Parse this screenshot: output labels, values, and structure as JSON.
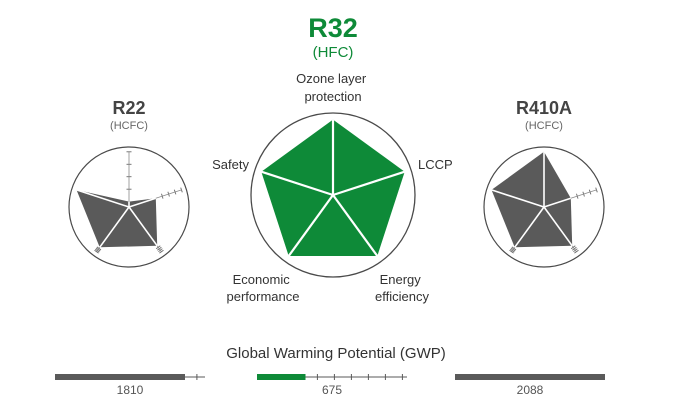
{
  "colors": {
    "green": "#0e8a38",
    "gray": "#5a5a5a",
    "outline": "#4a4a4a",
    "text": "#333333",
    "subtext": "#666666"
  },
  "chart_data": [
    {
      "type": "radar",
      "name": "R32",
      "subtitle": "(HFC)",
      "axes": [
        "Ozone layer protection",
        "LCCP",
        "Energy efficiency",
        "Economic performance",
        "Safety"
      ],
      "axis_label_lines": [
        [
          "Ozone layer",
          "protection"
        ],
        [
          "LCCP"
        ],
        [
          "Energy",
          "efficiency"
        ],
        [
          "Economic",
          "performance"
        ],
        [
          "Safety"
        ]
      ],
      "values": [
        0.92,
        0.92,
        0.92,
        0.92,
        0.92
      ],
      "range": [
        0,
        1
      ],
      "color": "#0e8a38"
    },
    {
      "type": "radar",
      "name": "R22",
      "subtitle": "(HCFC)",
      "axes": [
        "Ozone layer protection",
        "LCCP",
        "Energy efficiency",
        "Economic performance",
        "Safety"
      ],
      "values": [
        0.09,
        0.47,
        0.8,
        0.83,
        0.92
      ],
      "range": [
        0,
        1
      ],
      "color": "#5a5a5a"
    },
    {
      "type": "radar",
      "name": "R410A",
      "subtitle": "(HCFC)",
      "axes": [
        "Ozone layer protection",
        "LCCP",
        "Energy efficiency",
        "Economic performance",
        "Safety"
      ],
      "values": [
        0.92,
        0.47,
        0.8,
        0.83,
        0.92
      ],
      "range": [
        0,
        1
      ],
      "color": "#5a5a5a"
    },
    {
      "type": "bar",
      "title": "Global Warming Potential (GWP)",
      "categories": [
        "R22",
        "R32",
        "R410A"
      ],
      "values": [
        1810,
        675,
        2088
      ],
      "labels": [
        "1810",
        "675",
        "2088"
      ],
      "xlim": [
        0,
        2088
      ],
      "colors": [
        "#5a5a5a",
        "#0e8a38",
        "#5a5a5a"
      ]
    }
  ]
}
